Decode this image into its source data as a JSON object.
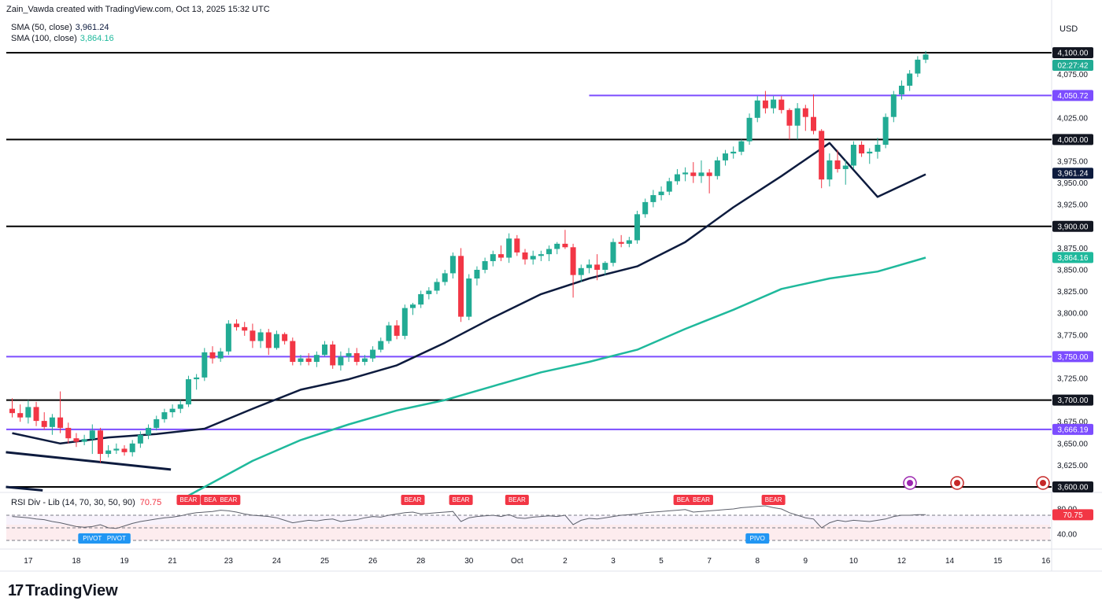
{
  "header": {
    "credit": "Zain_Vawda created with TradingView.com, Oct 13, 2025 15:32 UTC",
    "currency": "USD"
  },
  "legend": {
    "sma50": {
      "label": "SMA (50, close)",
      "value": "3,961.24",
      "color": "#0d1b3e"
    },
    "sma100": {
      "label": "SMA (100, close)",
      "value": "3,864.16",
      "color": "#1fb99c"
    },
    "rsi": {
      "label": "RSI Div - Lib (14, 70, 30, 50, 90)",
      "value": "70.75"
    }
  },
  "logo": {
    "text": "TradingView",
    "icon": "tradingview-logo-icon"
  },
  "colors": {
    "up": "#22ab94",
    "down": "#f23645",
    "purple": "#7c4dff",
    "black": "#000000",
    "countdown": "#22ab94"
  },
  "chart_data": {
    "type": "candlestick",
    "ylim": [
      3590,
      4120
    ],
    "price_ticks": [
      "4,075.00",
      "4,025.00",
      "3,975.00",
      "3,950.00",
      "3,925.00",
      "3,875.00",
      "3,850.00",
      "3,825.00",
      "3,800.00",
      "3,775.00",
      "3,725.00",
      "3,675.00",
      "3,650.00",
      "3,625.00"
    ],
    "x_ticks": [
      {
        "label": "17",
        "i": 2
      },
      {
        "label": "18",
        "i": 8
      },
      {
        "label": "19",
        "i": 14
      },
      {
        "label": "21",
        "i": 20
      },
      {
        "label": "23",
        "i": 27
      },
      {
        "label": "24",
        "i": 33
      },
      {
        "label": "25",
        "i": 39
      },
      {
        "label": "26",
        "i": 45
      },
      {
        "label": "28",
        "i": 51
      },
      {
        "label": "30",
        "i": 57
      },
      {
        "label": "Oct",
        "i": 63
      },
      {
        "label": "2",
        "i": 69
      },
      {
        "label": "3",
        "i": 75
      },
      {
        "label": "5",
        "i": 81
      },
      {
        "label": "7",
        "i": 87
      },
      {
        "label": "8",
        "i": 93
      },
      {
        "label": "9",
        "i": 99
      },
      {
        "label": "10",
        "i": 105
      },
      {
        "label": "12",
        "i": 111
      },
      {
        "label": "14",
        "i": 117
      },
      {
        "label": "15",
        "i": 123
      },
      {
        "label": "16",
        "i": 129
      }
    ],
    "candles": [
      [
        3690,
        3702,
        3680,
        3685
      ],
      [
        3685,
        3695,
        3675,
        3680
      ],
      [
        3680,
        3700,
        3673,
        3692
      ],
      [
        3692,
        3698,
        3670,
        3676
      ],
      [
        3676,
        3686,
        3666,
        3669
      ],
      [
        3669,
        3684,
        3660,
        3680
      ],
      [
        3680,
        3710,
        3662,
        3668
      ],
      [
        3668,
        3674,
        3650,
        3656
      ],
      [
        3656,
        3662,
        3646,
        3652
      ],
      [
        3652,
        3660,
        3648,
        3655
      ],
      [
        3655,
        3672,
        3638,
        3665
      ],
      [
        3665,
        3668,
        3628,
        3638
      ],
      [
        3638,
        3648,
        3634,
        3642
      ],
      [
        3642,
        3650,
        3638,
        3644
      ],
      [
        3644,
        3648,
        3636,
        3640
      ],
      [
        3640,
        3654,
        3635,
        3650
      ],
      [
        3650,
        3664,
        3645,
        3660
      ],
      [
        3660,
        3672,
        3655,
        3668
      ],
      [
        3668,
        3682,
        3665,
        3678
      ],
      [
        3678,
        3690,
        3674,
        3686
      ],
      [
        3686,
        3695,
        3680,
        3690
      ],
      [
        3690,
        3700,
        3685,
        3695
      ],
      [
        3695,
        3728,
        3692,
        3724
      ],
      [
        3724,
        3730,
        3712,
        3726
      ],
      [
        3726,
        3760,
        3722,
        3755
      ],
      [
        3755,
        3762,
        3742,
        3748
      ],
      [
        3748,
        3760,
        3744,
        3756
      ],
      [
        3756,
        3792,
        3752,
        3788
      ],
      [
        3788,
        3793,
        3780,
        3784
      ],
      [
        3784,
        3790,
        3774,
        3780
      ],
      [
        3780,
        3788,
        3760,
        3768
      ],
      [
        3768,
        3782,
        3760,
        3778
      ],
      [
        3778,
        3782,
        3752,
        3760
      ],
      [
        3760,
        3780,
        3758,
        3776
      ],
      [
        3776,
        3778,
        3764,
        3768
      ],
      [
        3768,
        3772,
        3740,
        3744
      ],
      [
        3744,
        3752,
        3740,
        3748
      ],
      [
        3748,
        3754,
        3740,
        3744
      ],
      [
        3744,
        3756,
        3738,
        3752
      ],
      [
        3752,
        3768,
        3750,
        3764
      ],
      [
        3764,
        3768,
        3736,
        3740
      ],
      [
        3740,
        3756,
        3734,
        3750
      ],
      [
        3750,
        3760,
        3744,
        3754
      ],
      [
        3754,
        3760,
        3740,
        3744
      ],
      [
        3744,
        3752,
        3740,
        3748
      ],
      [
        3748,
        3762,
        3744,
        3758
      ],
      [
        3758,
        3772,
        3755,
        3768
      ],
      [
        3768,
        3790,
        3765,
        3786
      ],
      [
        3786,
        3792,
        3770,
        3774
      ],
      [
        3774,
        3810,
        3770,
        3806
      ],
      [
        3806,
        3812,
        3798,
        3810
      ],
      [
        3810,
        3826,
        3806,
        3822
      ],
      [
        3822,
        3830,
        3816,
        3826
      ],
      [
        3826,
        3840,
        3822,
        3836
      ],
      [
        3836,
        3850,
        3832,
        3846
      ],
      [
        3846,
        3870,
        3840,
        3866
      ],
      [
        3866,
        3875,
        3790,
        3796
      ],
      [
        3796,
        3845,
        3792,
        3840
      ],
      [
        3840,
        3854,
        3832,
        3850
      ],
      [
        3850,
        3864,
        3846,
        3860
      ],
      [
        3860,
        3872,
        3854,
        3868
      ],
      [
        3868,
        3878,
        3860,
        3864
      ],
      [
        3864,
        3892,
        3858,
        3886
      ],
      [
        3886,
        3890,
        3866,
        3870
      ],
      [
        3870,
        3874,
        3856,
        3862
      ],
      [
        3862,
        3872,
        3856,
        3866
      ],
      [
        3866,
        3872,
        3860,
        3868
      ],
      [
        3868,
        3878,
        3860,
        3874
      ],
      [
        3874,
        3882,
        3868,
        3880
      ],
      [
        3880,
        3896,
        3874,
        3876
      ],
      [
        3876,
        3880,
        3818,
        3844
      ],
      [
        3844,
        3856,
        3836,
        3852
      ],
      [
        3852,
        3862,
        3846,
        3856
      ],
      [
        3856,
        3868,
        3838,
        3850
      ],
      [
        3850,
        3860,
        3844,
        3858
      ],
      [
        3858,
        3886,
        3854,
        3882
      ],
      [
        3882,
        3890,
        3876,
        3880
      ],
      [
        3880,
        3888,
        3876,
        3884
      ],
      [
        3884,
        3918,
        3880,
        3914
      ],
      [
        3914,
        3932,
        3910,
        3928
      ],
      [
        3928,
        3942,
        3922,
        3936
      ],
      [
        3936,
        3946,
        3930,
        3940
      ],
      [
        3940,
        3956,
        3936,
        3952
      ],
      [
        3952,
        3966,
        3948,
        3960
      ],
      [
        3960,
        3968,
        3952,
        3962
      ],
      [
        3962,
        3974,
        3950,
        3958
      ],
      [
        3958,
        3976,
        3950,
        3962
      ],
      [
        3962,
        3966,
        3938,
        3958
      ],
      [
        3958,
        3980,
        3954,
        3976
      ],
      [
        3976,
        3988,
        3970,
        3984
      ],
      [
        3984,
        3992,
        3978,
        3986
      ],
      [
        3986,
        4000,
        3982,
        3998
      ],
      [
        3998,
        4030,
        3994,
        4025
      ],
      [
        4025,
        4050,
        4020,
        4045
      ],
      [
        4045,
        4056,
        4030,
        4036
      ],
      [
        4036,
        4050,
        4030,
        4046
      ],
      [
        4046,
        4050,
        4030,
        4034
      ],
      [
        4034,
        4036,
        4000,
        4016
      ],
      [
        4016,
        4042,
        4000,
        4036
      ],
      [
        4036,
        4040,
        4010,
        4026
      ],
      [
        4026,
        4052,
        4006,
        4010
      ],
      [
        4010,
        4012,
        3944,
        3954
      ],
      [
        3954,
        3984,
        3946,
        3976
      ],
      [
        3976,
        3988,
        3962,
        3966
      ],
      [
        3966,
        3976,
        3948,
        3970
      ],
      [
        3970,
        3998,
        3966,
        3994
      ],
      [
        3994,
        3998,
        3980,
        3984
      ],
      [
        3984,
        3990,
        3972,
        3986
      ],
      [
        3986,
        4002,
        3978,
        3994
      ],
      [
        3994,
        4030,
        3990,
        4026
      ],
      [
        4026,
        4056,
        4020,
        4052
      ],
      [
        4052,
        4068,
        4046,
        4062
      ],
      [
        4062,
        4080,
        4056,
        4076
      ],
      [
        4076,
        4096,
        4072,
        4092
      ],
      [
        4092,
        4102,
        4088,
        4098
      ]
    ],
    "sma50": {
      "name": "SMA (50, close)",
      "color": "#0d1b3e",
      "points": [
        [
          0,
          3662
        ],
        [
          6,
          3650
        ],
        [
          12,
          3657
        ],
        [
          18,
          3661
        ],
        [
          24,
          3667
        ],
        [
          30,
          3690
        ],
        [
          36,
          3712
        ],
        [
          42,
          3724
        ],
        [
          48,
          3740
        ],
        [
          54,
          3766
        ],
        [
          60,
          3795
        ],
        [
          66,
          3822
        ],
        [
          72,
          3840
        ],
        [
          78,
          3854
        ],
        [
          84,
          3882
        ],
        [
          90,
          3922
        ],
        [
          96,
          3958
        ],
        [
          102,
          3996
        ],
        [
          108,
          3934
        ],
        [
          114,
          3960
        ]
      ]
    },
    "sma100": {
      "name": "SMA (100, close)",
      "color": "#1fb99c",
      "points": [
        [
          22,
          3590
        ],
        [
          30,
          3630
        ],
        [
          36,
          3654
        ],
        [
          42,
          3672
        ],
        [
          48,
          3688
        ],
        [
          54,
          3700
        ],
        [
          60,
          3716
        ],
        [
          66,
          3732
        ],
        [
          72,
          3744
        ],
        [
          78,
          3758
        ],
        [
          84,
          3782
        ],
        [
          90,
          3804
        ],
        [
          96,
          3828
        ],
        [
          102,
          3840
        ],
        [
          108,
          3848
        ],
        [
          114,
          3864
        ]
      ]
    },
    "levels": [
      {
        "value": 3600.0,
        "label": "3,600.00",
        "color": "#000000",
        "from": 0
      },
      {
        "value": 3666.19,
        "label": "3,666.19",
        "color": "#7c4dff",
        "from": 0
      },
      {
        "value": 3700.0,
        "label": "3,700.00",
        "color": "#000000",
        "from": 0
      },
      {
        "value": 3750.0,
        "label": "3,750.00",
        "color": "#7c4dff",
        "from": 0
      },
      {
        "value": 3900.0,
        "label": "3,900.00",
        "color": "#000000",
        "from": 0
      },
      {
        "value": 4000.0,
        "label": "4,000.00",
        "color": "#000000",
        "from": 0
      },
      {
        "value": 4050.72,
        "label": "4,050.72",
        "color": "#7c4dff",
        "from": 72
      },
      {
        "value": 4100.0,
        "label": "4,100.00",
        "color": "#000000",
        "from": 0
      }
    ],
    "price_tags": [
      {
        "value": 3961.24,
        "label": "3,961.24",
        "bg": "#0d1b3e",
        "fg": "#ffffff"
      },
      {
        "value": 3864.16,
        "label": "3,864.16",
        "bg": "#1fb99c",
        "fg": "#ffffff"
      }
    ],
    "countdown": {
      "value": 4090,
      "label": "02:27:42"
    },
    "trendlines": [
      {
        "from": [
          0,
          3640
        ],
        "to": [
          20,
          3620
        ]
      },
      {
        "from": [
          0,
          3600
        ],
        "to": [
          4,
          3596
        ]
      }
    ],
    "rsi": {
      "ylim": [
        30,
        95
      ],
      "ticks": [
        {
          "value": 80,
          "label": "80.00"
        },
        {
          "value": 40,
          "label": "40.00"
        }
      ],
      "levels": [
        70,
        50,
        30
      ],
      "current": {
        "value": 70.75,
        "label": "70.75"
      },
      "values": [
        68,
        67,
        66,
        64,
        63,
        60,
        58,
        55,
        52,
        51,
        52,
        55,
        50,
        49,
        53,
        57,
        60,
        62,
        64,
        66,
        67,
        69,
        72,
        74,
        75,
        76,
        78,
        77,
        75,
        72,
        70,
        69,
        68,
        66,
        62,
        58,
        60,
        62,
        61,
        63,
        64,
        60,
        62,
        63,
        66,
        68,
        67,
        70,
        72,
        74,
        75,
        72,
        73,
        74,
        75,
        76,
        60,
        66,
        68,
        69,
        70,
        68,
        71,
        66,
        65,
        67,
        68,
        69,
        68,
        70,
        55,
        62,
        65,
        64,
        66,
        68,
        70,
        71,
        72,
        74,
        75,
        76,
        77,
        78,
        79,
        75,
        76,
        77,
        78,
        79,
        80,
        82,
        83,
        84,
        85,
        82,
        80,
        74,
        70,
        66,
        64,
        50,
        58,
        62,
        60,
        62,
        61,
        60,
        62,
        64,
        68,
        70,
        70,
        71,
        71
      ]
    },
    "signals": [
      {
        "label": "BEAR",
        "i": 22,
        "type": "bear"
      },
      {
        "label": "BEAR",
        "i": 25,
        "type": "bear"
      },
      {
        "label": "BEAR",
        "i": 27,
        "type": "bear"
      },
      {
        "label": "BEAR",
        "i": 50,
        "type": "bear"
      },
      {
        "label": "BEAR",
        "i": 56,
        "type": "bear"
      },
      {
        "label": "BEAR",
        "i": 63,
        "type": "bear"
      },
      {
        "label": "BEAR",
        "i": 84,
        "type": "bear"
      },
      {
        "label": "BEAR",
        "i": 86,
        "type": "bear"
      },
      {
        "label": "BEAR",
        "i": 95,
        "type": "bear"
      },
      {
        "label": "PIVOT",
        "i": 10,
        "type": "pivot"
      },
      {
        "label": "PIVOT",
        "i": 13,
        "type": "pivot"
      },
      {
        "label": "PIVO",
        "i": 93,
        "type": "pivot"
      }
    ]
  }
}
